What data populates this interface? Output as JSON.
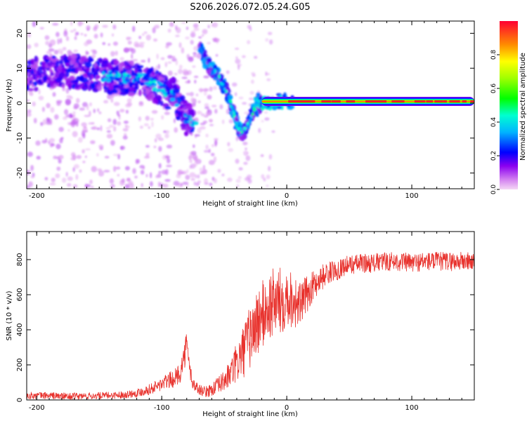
{
  "title": "S206.2026.072.05.24.G05",
  "colors": {
    "snr_line": "#e8322d",
    "axis": "#000000",
    "background": "#ffffff"
  },
  "chart_data": [
    {
      "type": "heatmap",
      "name": "spectrogram",
      "xlabel": "Height of straight line (km)",
      "ylabel": "Frequency (Hz)",
      "xlim": [
        -208,
        150
      ],
      "ylim": [
        -24.5,
        23.5
      ],
      "xticks": [
        -200,
        -100,
        0,
        100
      ],
      "xticklabels": [
        "-200",
        "-100",
        "0",
        "100"
      ],
      "yticks": [
        -20,
        -10,
        0,
        10,
        20
      ],
      "yticklabels": [
        "-20",
        "-10",
        "0",
        "10",
        "20"
      ],
      "colorbar": {
        "label": "Normalized spectral amplitude",
        "range": [
          0,
          1
        ],
        "ticks": [
          0,
          0.2,
          0.4,
          0.6,
          0.8
        ],
        "ticklabels": [
          "0.0",
          "0.2",
          "0.4",
          "0.6",
          "0.8"
        ],
        "colormap": "rainbow (magenta-blue-cyan-green-yellow-red)"
      },
      "features": [
        {
          "description": "carrier tone",
          "x_range": [
            -20,
            150
          ],
          "frequency_hz": 0.5,
          "amplitude": 0.9
        },
        {
          "description": "scintillation cloud",
          "x_range": [
            -208,
            -75
          ],
          "frequency_track_hz": [
            [
              -205,
              8
            ],
            [
              -190,
              9
            ],
            [
              -170,
              9
            ],
            [
              -150,
              8
            ],
            [
              -130,
              7
            ],
            [
              -115,
              7
            ],
            [
              -100,
              4
            ],
            [
              -90,
              2
            ],
            [
              -80,
              -5
            ]
          ]
        },
        {
          "description": "descending branch",
          "x_range": [
            -70,
            -25
          ],
          "frequency_track_hz": [
            [
              -70,
              17
            ],
            [
              -65,
              12
            ],
            [
              -58,
              9
            ],
            [
              -50,
              5
            ],
            [
              -45,
              0
            ],
            [
              -40,
              -6
            ],
            [
              -35,
              -9
            ],
            [
              -28,
              -3
            ],
            [
              -20,
              0
            ]
          ]
        }
      ]
    },
    {
      "type": "line",
      "name": "snr",
      "xlabel": "Height of straight line (km)",
      "ylabel": "SNR (10 * v/v)",
      "xlim": [
        -208,
        150
      ],
      "ylim": [
        0,
        960
      ],
      "xticks": [
        -200,
        -100,
        0,
        100
      ],
      "xticklabels": [
        "-200",
        "-100",
        "0",
        "100"
      ],
      "yticks": [
        0,
        200,
        400,
        600,
        800
      ],
      "yticklabels": [
        "0",
        "200",
        "400",
        "600",
        "800"
      ],
      "series": [
        {
          "name": "SNR",
          "x": [
            -205,
            -190,
            -175,
            -160,
            -145,
            -130,
            -120,
            -110,
            -100,
            -95,
            -90,
            -85,
            -82,
            -80,
            -78,
            -75,
            -70,
            -65,
            -60,
            -55,
            -50,
            -45,
            -40,
            -35,
            -30,
            -25,
            -20,
            -15,
            -10,
            -5,
            0,
            5,
            10,
            15,
            20,
            25,
            30,
            35,
            40,
            45,
            50,
            60,
            70,
            80,
            90,
            100,
            110,
            120,
            130,
            140,
            150
          ],
          "y": [
            25,
            25,
            20,
            22,
            25,
            30,
            40,
            60,
            90,
            110,
            120,
            160,
            250,
            320,
            190,
            90,
            60,
            45,
            60,
            80,
            110,
            150,
            210,
            270,
            350,
            420,
            480,
            520,
            560,
            560,
            600,
            570,
            540,
            590,
            640,
            680,
            710,
            730,
            740,
            760,
            770,
            780,
            780,
            790,
            790,
            780,
            790,
            790,
            790,
            790,
            790
          ],
          "noise_amplitude": [
            20,
            20,
            20,
            20,
            20,
            20,
            25,
            30,
            40,
            45,
            50,
            60,
            80,
            80,
            60,
            40,
            30,
            30,
            40,
            50,
            60,
            80,
            120,
            150,
            180,
            200,
            200,
            200,
            200,
            200,
            180,
            160,
            130,
            110,
            90,
            80,
            70,
            60,
            60,
            55,
            55,
            55,
            55,
            55,
            55,
            55,
            55,
            55,
            55,
            55,
            55
          ]
        }
      ]
    }
  ]
}
